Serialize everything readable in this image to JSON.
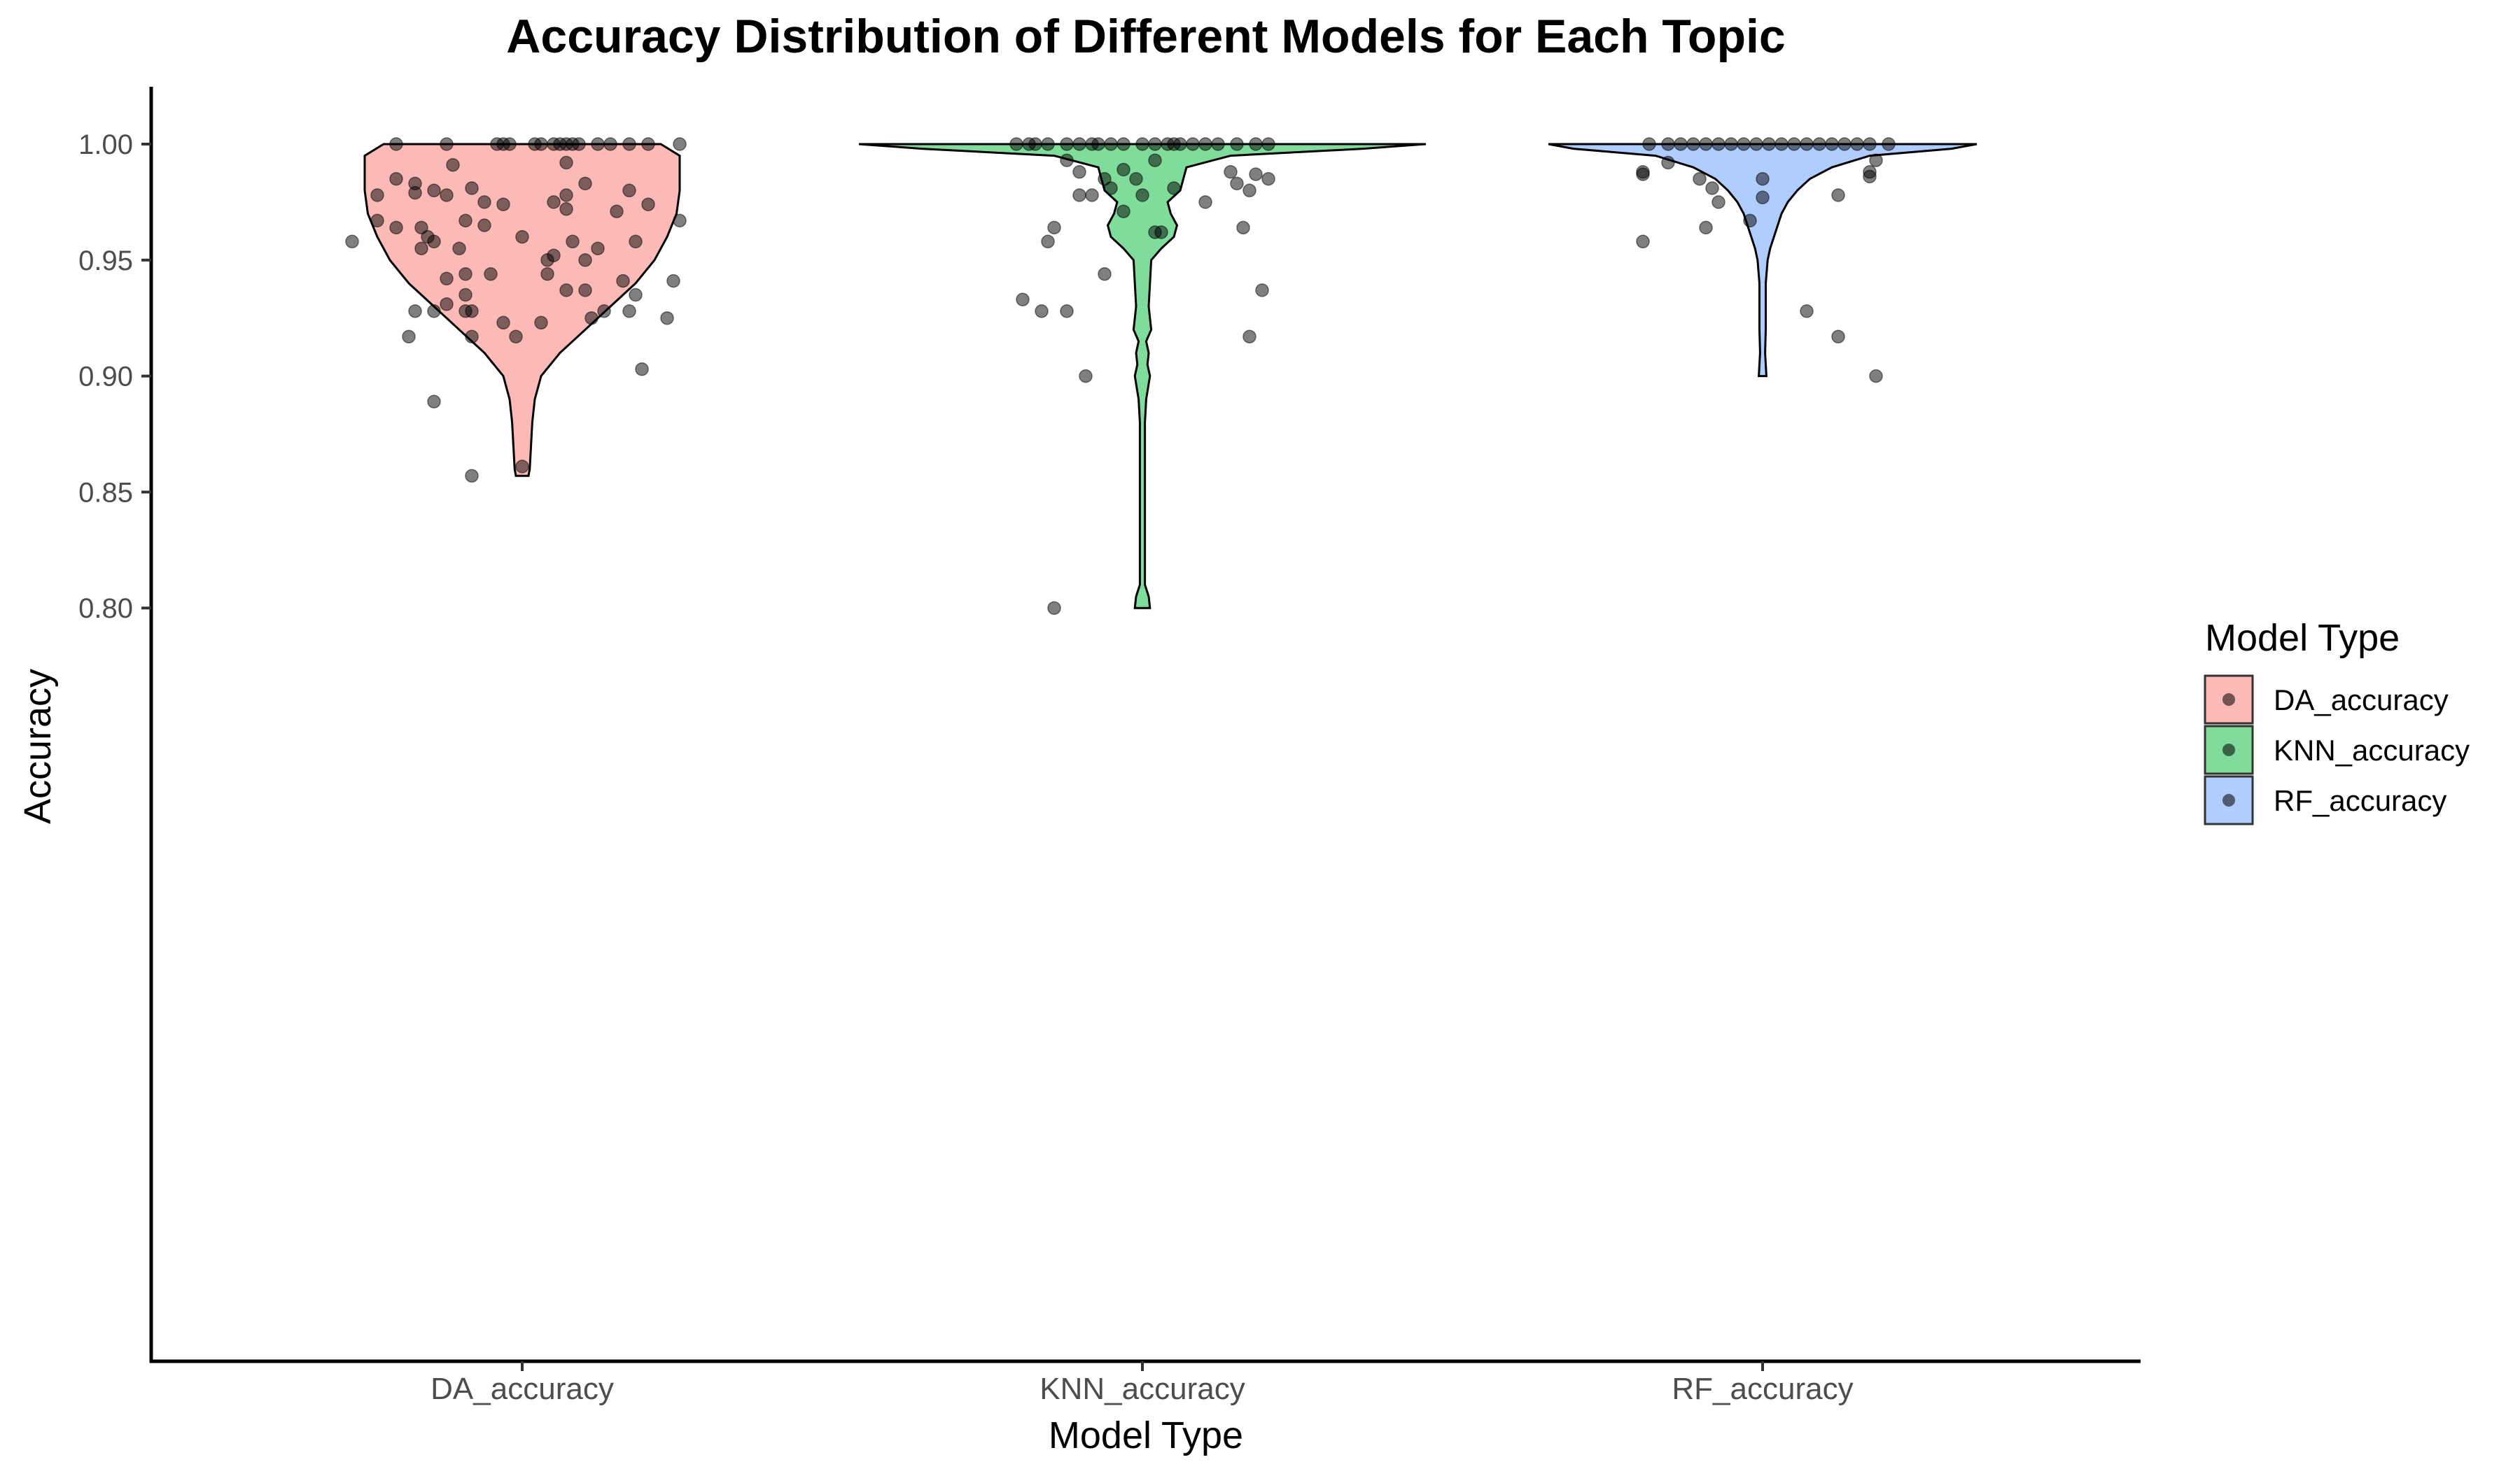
{
  "chart_data": {
    "type": "violin",
    "title": "Accuracy Distribution of Different Models for Each Topic",
    "xlabel": "Model Type",
    "ylabel": "Accuracy",
    "ylim": [
      0.79,
      1.01
    ],
    "yticks": [
      0.8,
      0.85,
      0.9,
      0.95,
      1.0
    ],
    "ytick_labels": [
      "0.80",
      "0.85",
      "0.90",
      "0.95",
      "1.00"
    ],
    "grid": false,
    "legend": {
      "title": "Model Type",
      "placement": "right",
      "entries": [
        "DA_accuracy",
        "KNN_accuracy",
        "RF_accuracy"
      ]
    },
    "categories": [
      "DA_accuracy",
      "KNN_accuracy",
      "RF_accuracy"
    ],
    "colors": {
      "DA_accuracy": "#F8766D",
      "KNN_accuracy": "#00BA38",
      "RF_accuracy": "#619CFF",
      "points": "#000000"
    },
    "series": [
      {
        "name": "DA_accuracy",
        "violin": {
          "min": 0.857,
          "max": 1.0,
          "profile": [
            [
              0.857,
              0.01
            ],
            [
              0.86,
              0.012
            ],
            [
              0.87,
              0.014
            ],
            [
              0.88,
              0.016
            ],
            [
              0.89,
              0.02
            ],
            [
              0.9,
              0.03
            ],
            [
              0.91,
              0.06
            ],
            [
              0.92,
              0.1
            ],
            [
              0.93,
              0.14
            ],
            [
              0.94,
              0.18
            ],
            [
              0.95,
              0.21
            ],
            [
              0.96,
              0.23
            ],
            [
              0.97,
              0.245
            ],
            [
              0.98,
              0.25
            ],
            [
              0.99,
              0.25
            ],
            [
              0.995,
              0.25
            ],
            [
              1.0,
              0.22
            ]
          ]
        },
        "points": [
          [
            -0.04,
            1.0
          ],
          [
            -0.03,
            1.0
          ],
          [
            -0.02,
            1.0
          ],
          [
            0.02,
            1.0
          ],
          [
            0.03,
            1.0
          ],
          [
            0.05,
            1.0
          ],
          [
            0.06,
            1.0
          ],
          [
            0.07,
            1.0
          ],
          [
            0.08,
            1.0
          ],
          [
            0.09,
            1.0
          ],
          [
            0.12,
            1.0
          ],
          [
            0.14,
            1.0
          ],
          [
            0.17,
            1.0
          ],
          [
            0.2,
            1.0
          ],
          [
            0.25,
            1.0
          ],
          [
            -0.12,
            1.0
          ],
          [
            -0.2,
            1.0
          ],
          [
            0.07,
            0.992
          ],
          [
            -0.11,
            0.991
          ],
          [
            -0.2,
            0.985
          ],
          [
            -0.17,
            0.983
          ],
          [
            0.1,
            0.983
          ],
          [
            -0.17,
            0.979
          ],
          [
            -0.14,
            0.98
          ],
          [
            -0.08,
            0.981
          ],
          [
            0.07,
            0.978
          ],
          [
            0.17,
            0.98
          ],
          [
            -0.23,
            0.978
          ],
          [
            -0.06,
            0.975
          ],
          [
            0.05,
            0.975
          ],
          [
            -0.12,
            0.978
          ],
          [
            0.2,
            0.974
          ],
          [
            0.07,
            0.972
          ],
          [
            -0.03,
            0.974
          ],
          [
            0.15,
            0.971
          ],
          [
            -0.23,
            0.967
          ],
          [
            -0.2,
            0.964
          ],
          [
            -0.16,
            0.964
          ],
          [
            -0.09,
            0.967
          ],
          [
            0.25,
            0.967
          ],
          [
            -0.27,
            0.958
          ],
          [
            -0.15,
            0.96
          ],
          [
            -0.14,
            0.958
          ],
          [
            -0.06,
            0.965
          ],
          [
            0.0,
            0.96
          ],
          [
            0.08,
            0.958
          ],
          [
            0.18,
            0.958
          ],
          [
            -0.16,
            0.955
          ],
          [
            -0.1,
            0.955
          ],
          [
            0.05,
            0.952
          ],
          [
            0.12,
            0.955
          ],
          [
            0.04,
            0.95
          ],
          [
            0.1,
            0.95
          ],
          [
            -0.09,
            0.944
          ],
          [
            -0.05,
            0.944
          ],
          [
            0.04,
            0.944
          ],
          [
            -0.12,
            0.942
          ],
          [
            0.16,
            0.941
          ],
          [
            0.24,
            0.941
          ],
          [
            -0.09,
            0.935
          ],
          [
            0.07,
            0.937
          ],
          [
            0.1,
            0.937
          ],
          [
            0.18,
            0.935
          ],
          [
            -0.12,
            0.931
          ],
          [
            -0.17,
            0.928
          ],
          [
            -0.14,
            0.928
          ],
          [
            -0.09,
            0.928
          ],
          [
            -0.08,
            0.928
          ],
          [
            0.13,
            0.928
          ],
          [
            0.17,
            0.928
          ],
          [
            0.11,
            0.925
          ],
          [
            0.23,
            0.925
          ],
          [
            -0.03,
            0.923
          ],
          [
            0.03,
            0.923
          ],
          [
            -0.18,
            0.917
          ],
          [
            -0.08,
            0.917
          ],
          [
            -0.01,
            0.917
          ],
          [
            0.19,
            0.903
          ],
          [
            -0.14,
            0.889
          ],
          [
            0.0,
            0.861
          ],
          [
            -0.08,
            0.857
          ]
        ]
      },
      {
        "name": "KNN_accuracy",
        "violin": {
          "min": 0.8,
          "max": 1.0,
          "profile": [
            [
              0.8,
              0.012
            ],
            [
              0.805,
              0.01
            ],
            [
              0.81,
              0.004
            ],
            [
              0.82,
              0.004
            ],
            [
              0.83,
              0.004
            ],
            [
              0.84,
              0.004
            ],
            [
              0.85,
              0.004
            ],
            [
              0.86,
              0.004
            ],
            [
              0.87,
              0.004
            ],
            [
              0.88,
              0.004
            ],
            [
              0.89,
              0.006
            ],
            [
              0.9,
              0.012
            ],
            [
              0.905,
              0.008
            ],
            [
              0.91,
              0.01
            ],
            [
              0.915,
              0.006
            ],
            [
              0.92,
              0.014
            ],
            [
              0.93,
              0.01
            ],
            [
              0.94,
              0.012
            ],
            [
              0.95,
              0.014
            ],
            [
              0.955,
              0.03
            ],
            [
              0.96,
              0.05
            ],
            [
              0.965,
              0.055
            ],
            [
              0.97,
              0.045
            ],
            [
              0.975,
              0.04
            ],
            [
              0.98,
              0.06
            ],
            [
              0.985,
              0.065
            ],
            [
              0.99,
              0.07
            ],
            [
              0.995,
              0.14
            ],
            [
              0.998,
              0.35
            ],
            [
              1.0,
              0.45
            ]
          ]
        },
        "points": [
          [
            -0.2,
            1.0
          ],
          [
            -0.17,
            1.0
          ],
          [
            -0.15,
            1.0
          ],
          [
            -0.12,
            1.0
          ],
          [
            -0.1,
            1.0
          ],
          [
            -0.07,
            1.0
          ],
          [
            -0.05,
            1.0
          ],
          [
            -0.03,
            1.0
          ],
          [
            0.0,
            1.0
          ],
          [
            0.02,
            1.0
          ],
          [
            0.04,
            1.0
          ],
          [
            0.06,
            1.0
          ],
          [
            0.08,
            1.0
          ],
          [
            0.1,
            1.0
          ],
          [
            0.12,
            1.0
          ],
          [
            0.15,
            1.0
          ],
          [
            0.18,
            1.0
          ],
          [
            0.2,
            1.0
          ],
          [
            -0.18,
            1.0
          ],
          [
            -0.08,
            1.0
          ],
          [
            0.05,
            1.0
          ],
          [
            -0.12,
            0.993
          ],
          [
            0.02,
            0.993
          ],
          [
            -0.03,
            0.989
          ],
          [
            -0.1,
            0.988
          ],
          [
            0.14,
            0.988
          ],
          [
            -0.06,
            0.985
          ],
          [
            -0.01,
            0.985
          ],
          [
            0.18,
            0.987
          ],
          [
            0.2,
            0.985
          ],
          [
            0.15,
            0.983
          ],
          [
            -0.05,
            0.981
          ],
          [
            0.05,
            0.981
          ],
          [
            0.17,
            0.98
          ],
          [
            -0.1,
            0.978
          ],
          [
            -0.08,
            0.978
          ],
          [
            0.0,
            0.978
          ],
          [
            0.1,
            0.975
          ],
          [
            -0.03,
            0.971
          ],
          [
            -0.14,
            0.964
          ],
          [
            0.16,
            0.964
          ],
          [
            0.02,
            0.962
          ],
          [
            0.03,
            0.962
          ],
          [
            -0.15,
            0.958
          ],
          [
            -0.06,
            0.944
          ],
          [
            0.19,
            0.937
          ],
          [
            -0.19,
            0.933
          ],
          [
            -0.16,
            0.928
          ],
          [
            -0.12,
            0.928
          ],
          [
            0.17,
            0.917
          ],
          [
            -0.09,
            0.9
          ],
          [
            -0.14,
            0.8
          ]
        ]
      },
      {
        "name": "RF_accuracy",
        "violin": {
          "min": 0.9,
          "max": 1.0,
          "profile": [
            [
              0.9,
              0.006
            ],
            [
              0.905,
              0.005
            ],
            [
              0.91,
              0.004
            ],
            [
              0.92,
              0.005
            ],
            [
              0.93,
              0.005
            ],
            [
              0.94,
              0.005
            ],
            [
              0.95,
              0.008
            ],
            [
              0.955,
              0.012
            ],
            [
              0.96,
              0.018
            ],
            [
              0.965,
              0.024
            ],
            [
              0.97,
              0.03
            ],
            [
              0.975,
              0.04
            ],
            [
              0.98,
              0.055
            ],
            [
              0.985,
              0.075
            ],
            [
              0.99,
              0.11
            ],
            [
              0.995,
              0.17
            ],
            [
              0.998,
              0.3
            ],
            [
              1.0,
              0.34
            ]
          ]
        },
        "points": [
          [
            -0.18,
            1.0
          ],
          [
            -0.15,
            1.0
          ],
          [
            -0.13,
            1.0
          ],
          [
            -0.11,
            1.0
          ],
          [
            -0.09,
            1.0
          ],
          [
            -0.07,
            1.0
          ],
          [
            -0.05,
            1.0
          ],
          [
            -0.03,
            1.0
          ],
          [
            -0.01,
            1.0
          ],
          [
            0.01,
            1.0
          ],
          [
            0.03,
            1.0
          ],
          [
            0.05,
            1.0
          ],
          [
            0.07,
            1.0
          ],
          [
            0.09,
            1.0
          ],
          [
            0.11,
            1.0
          ],
          [
            0.13,
            1.0
          ],
          [
            0.15,
            1.0
          ],
          [
            0.17,
            1.0
          ],
          [
            0.2,
            1.0
          ],
          [
            -0.15,
            0.992
          ],
          [
            0.18,
            0.993
          ],
          [
            -0.19,
            0.988
          ],
          [
            -0.19,
            0.987
          ],
          [
            0.17,
            0.988
          ],
          [
            0.17,
            0.986
          ],
          [
            -0.1,
            0.985
          ],
          [
            0.0,
            0.985
          ],
          [
            -0.08,
            0.981
          ],
          [
            0.12,
            0.978
          ],
          [
            0.0,
            0.977
          ],
          [
            -0.07,
            0.975
          ],
          [
            -0.02,
            0.967
          ],
          [
            -0.09,
            0.964
          ],
          [
            -0.19,
            0.958
          ],
          [
            0.07,
            0.928
          ],
          [
            0.12,
            0.917
          ],
          [
            0.18,
            0.9
          ]
        ]
      }
    ]
  }
}
